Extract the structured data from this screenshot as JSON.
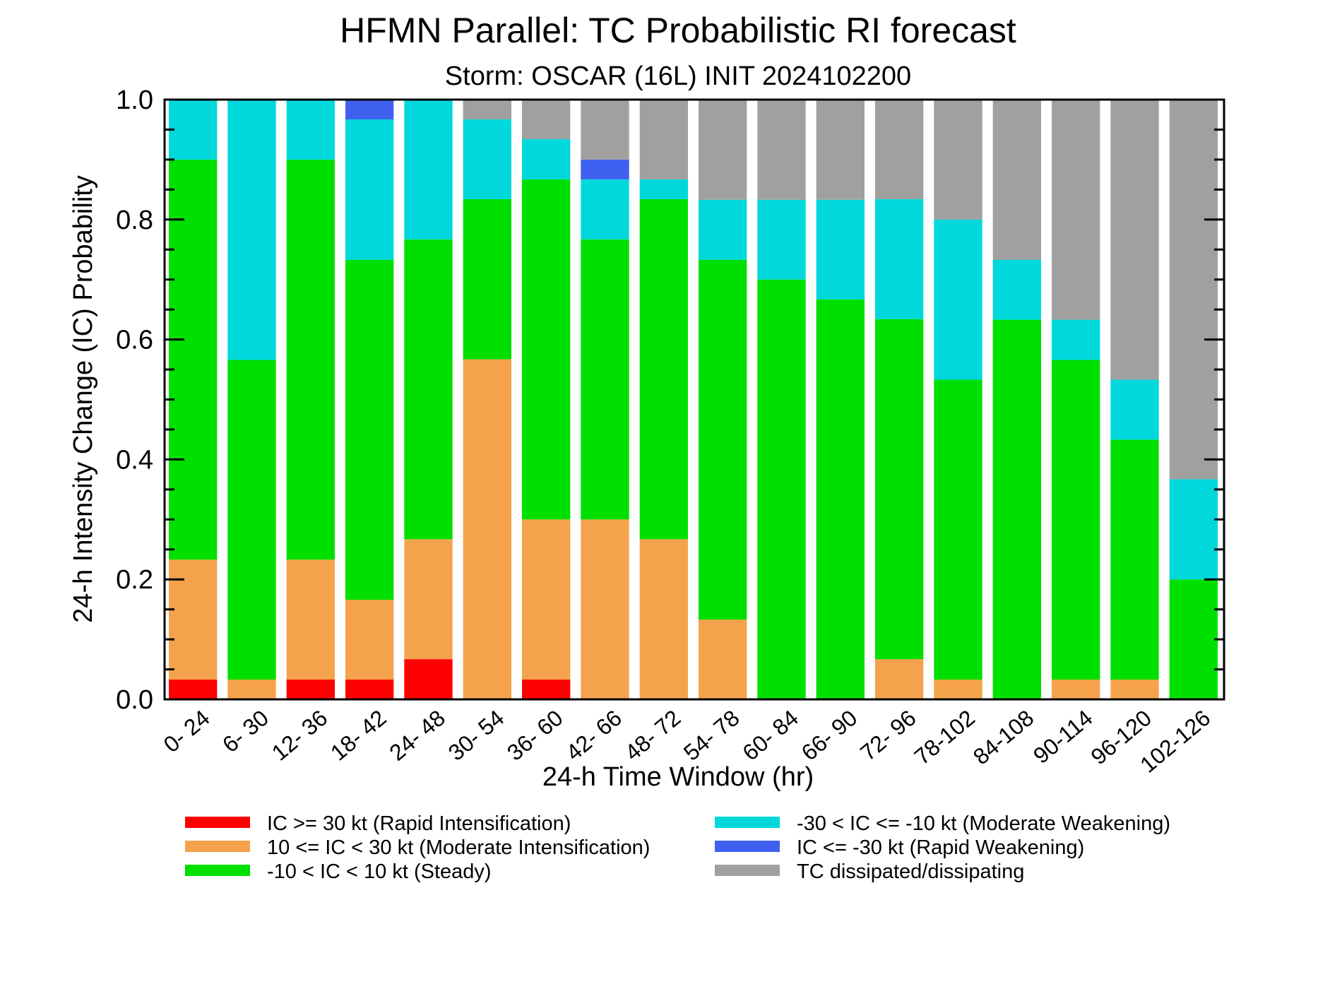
{
  "chart_data": {
    "type": "bar",
    "stacked": true,
    "title": "HFMN Parallel: TC Probabilistic RI forecast",
    "subtitle": "Storm: OSCAR (16L) INIT 2024102200",
    "xlabel": "24-h Time Window (hr)",
    "ylabel": "24-h Intensity Change (IC) Probability",
    "ylim": [
      0,
      1
    ],
    "yticks": [
      "0.0",
      "0.2",
      "0.4",
      "0.6",
      "0.8",
      "1.0"
    ],
    "grid": false,
    "legend_position": "bottom",
    "categories": [
      "0- 24",
      "6- 30",
      "12- 36",
      "18- 42",
      "24- 48",
      "30- 54",
      "36- 60",
      "42- 66",
      "48- 72",
      "54- 78",
      "60- 84",
      "66- 90",
      "72- 96",
      "78-102",
      "84-108",
      "90-114",
      "96-120",
      "102-126"
    ],
    "series": [
      {
        "name": "IC >= 30 kt (Rapid Intensification)",
        "color": "#ff0000",
        "values": [
          0.033,
          0,
          0.033,
          0.033,
          0.067,
          0,
          0.033,
          0,
          0,
          0,
          0,
          0,
          0,
          0,
          0,
          0,
          0,
          0
        ]
      },
      {
        "name": "10 <= IC < 30 kt (Moderate Intensification)",
        "color": "#f4a34c",
        "values": [
          0.2,
          0.033,
          0.2,
          0.133,
          0.2,
          0.567,
          0.267,
          0.3,
          0.267,
          0.133,
          0,
          0,
          0.067,
          0.033,
          0,
          0.033,
          0.033,
          0
        ]
      },
      {
        "name": "-10 < IC < 10 kt (Steady)",
        "color": "#00e000",
        "values": [
          0.667,
          0.533,
          0.667,
          0.567,
          0.5,
          0.267,
          0.567,
          0.467,
          0.567,
          0.6,
          0.7,
          0.667,
          0.567,
          0.5,
          0.633,
          0.533,
          0.4,
          0.2
        ]
      },
      {
        "name": "-30 < IC <= -10 kt (Moderate Weakening)",
        "color": "#00d8dc",
        "values": [
          0.1,
          0.434,
          0.1,
          0.234,
          0.233,
          0.133,
          0.067,
          0.1,
          0.033,
          0.1,
          0.133,
          0.166,
          0.2,
          0.267,
          0.1,
          0.067,
          0.1,
          0.167
        ]
      },
      {
        "name": "IC <= -30 kt (Rapid Weakening)",
        "color": "#4060f0",
        "values": [
          0,
          0,
          0,
          0.033,
          0,
          0,
          0,
          0.033,
          0,
          0,
          0,
          0,
          0,
          0,
          0,
          0,
          0,
          0
        ]
      },
      {
        "name": "TC dissipated/dissipating",
        "color": "#a0a0a0",
        "values": [
          0,
          0,
          0,
          0,
          0,
          0.033,
          0.066,
          0.1,
          0.133,
          0.167,
          0.167,
          0.167,
          0.166,
          0.2,
          0.267,
          0.367,
          0.467,
          0.633
        ]
      }
    ],
    "legend_columns": [
      [
        0,
        1,
        2
      ],
      [
        3,
        4,
        5
      ]
    ]
  }
}
